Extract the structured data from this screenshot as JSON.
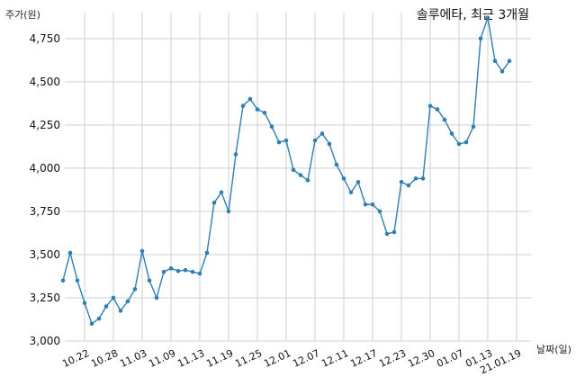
{
  "chart_data": {
    "type": "line",
    "title": "솔루에타, 최근 3개월",
    "ylabel": "주가(원)",
    "xlabel": "날짜(일)",
    "ylim": [
      3000,
      4900
    ],
    "yticks": [
      3000,
      3250,
      3500,
      3750,
      4000,
      4250,
      4500,
      4750
    ],
    "ytick_labels": [
      "3,000",
      "3,250",
      "3,500",
      "3,750",
      "4,000",
      "4,250",
      "4,500",
      "4,750"
    ],
    "xtick_labels": [
      "10.22",
      "10.28",
      "11.03",
      "11.09",
      "11.13",
      "11.19",
      "11.25",
      "12.01",
      "12.07",
      "12.11",
      "12.17",
      "12.23",
      "12.30",
      "01.07",
      "01.13",
      "21.01.19"
    ],
    "xtick_index": [
      3,
      7,
      11,
      15,
      19,
      23,
      27,
      31,
      35,
      39,
      43,
      47,
      51,
      55,
      59,
      63
    ],
    "grid": true,
    "line_color": "#2f7fb5",
    "values": [
      3350,
      3510,
      3350,
      3220,
      3100,
      3130,
      3200,
      3250,
      3175,
      3230,
      3300,
      3520,
      3350,
      3250,
      3400,
      3420,
      3405,
      3410,
      3400,
      3390,
      3510,
      3800,
      3860,
      3750,
      4080,
      4360,
      4400,
      4340,
      4320,
      4240,
      4150,
      4160,
      3990,
      3960,
      3930,
      4160,
      4200,
      4140,
      4020,
      3940,
      3860,
      3920,
      3790,
      3790,
      3750,
      3620,
      3630,
      3920,
      3900,
      3940,
      3940,
      4360,
      4340,
      4280,
      4200,
      4140,
      4150,
      4240,
      4750,
      4870,
      4620,
      4560,
      4620
    ]
  }
}
